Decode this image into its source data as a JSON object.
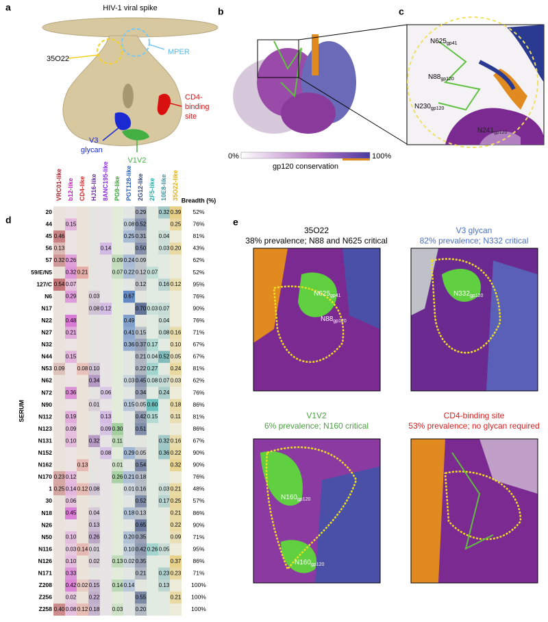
{
  "panels": {
    "a": "a",
    "b": "b",
    "c": "c",
    "d": "d",
    "e": "e"
  },
  "panel_a": {
    "title": "HIV-1 viral spike",
    "epitope_35o22": "35O22",
    "mper": "MPER",
    "cd4_lines": [
      "CD4-",
      "binding",
      "site"
    ],
    "v3_lines": [
      "V3",
      "glycan"
    ],
    "v1v2": "V1V2"
  },
  "panel_b": {
    "scale_min": "0%",
    "scale_max": "100%",
    "scale_label": "gp120 conservation"
  },
  "panel_c": {
    "labels": [
      {
        "text": "N625",
        "sub": "gp41"
      },
      {
        "text": "N88",
        "sub": "gp120"
      },
      {
        "text": "N230",
        "sub": "gp120"
      },
      {
        "text": "N241",
        "sub": "gp120"
      }
    ]
  },
  "heatmap": {
    "breadth_header": "Breadth (%)",
    "row_axis": "SERUM",
    "columns": [
      {
        "name": "VRC01-like",
        "color": "#a8252f"
      },
      {
        "name": "b12-like",
        "color": "#c81fc8"
      },
      {
        "name": "CD4-like",
        "color": "#d42a2a"
      },
      {
        "name": "HJ16-like",
        "color": "#6a2d9a"
      },
      {
        "name": "8ANC195-like",
        "color": "#8a2be2"
      },
      {
        "name": "PG9-like",
        "color": "#3aa43a"
      },
      {
        "name": "PGT128-like",
        "color": "#2e63b8"
      },
      {
        "name": "2G12-like",
        "color": "#34497e"
      },
      {
        "name": "2F5-like",
        "color": "#28aaaa"
      },
      {
        "name": "10E8-like",
        "color": "#3a96a0"
      },
      {
        "name": "35O22-like",
        "color": "#e0b020"
      }
    ],
    "rows": [
      {
        "label": "20",
        "cells": [
          null,
          null,
          null,
          null,
          null,
          null,
          null,
          "0.29",
          null,
          "0.32",
          "0.39"
        ],
        "breadth": "52%"
      },
      {
        "label": "44",
        "cells": [
          null,
          "0.15",
          null,
          null,
          null,
          null,
          "0.08",
          "0.52",
          null,
          null,
          "0.25"
        ],
        "breadth": "76%"
      },
      {
        "label": "45",
        "cells": [
          "0.46",
          null,
          null,
          null,
          null,
          null,
          "0.25",
          "0.31",
          null,
          "0.04",
          null
        ],
        "breadth": "81%"
      },
      {
        "label": "56",
        "cells": [
          "0.13",
          null,
          null,
          null,
          "0.14",
          null,
          null,
          "0.50",
          null,
          "0.03",
          "0.20"
        ],
        "breadth": "43%"
      },
      {
        "label": "57",
        "cells": [
          "0.32",
          "0.26",
          null,
          null,
          null,
          "0.09",
          "0.24",
          "0.09",
          null,
          null,
          null
        ],
        "breadth": "62%"
      },
      {
        "label": "59/E/N5",
        "cells": [
          null,
          "0.32",
          "0.21",
          null,
          null,
          "0.07",
          "0.22",
          "0.12",
          "0.07",
          null,
          null
        ],
        "breadth": "52%"
      },
      {
        "label": "127/C",
        "cells": [
          "0.54",
          "0.07",
          null,
          null,
          null,
          null,
          null,
          "0.12",
          null,
          "0.16",
          "0.12"
        ],
        "breadth": "95%"
      },
      {
        "label": "N6",
        "cells": [
          null,
          "0.29",
          null,
          "0.03",
          null,
          null,
          "0.67",
          null,
          null,
          null,
          null
        ],
        "breadth": "76%"
      },
      {
        "label": "N17",
        "cells": [
          null,
          null,
          null,
          "0.08",
          "0.12",
          null,
          null,
          "0.70",
          "0.03",
          "0.07",
          null
        ],
        "breadth": "90%"
      },
      {
        "label": "N22",
        "cells": [
          null,
          "0.48",
          null,
          null,
          null,
          null,
          "0.49",
          null,
          null,
          "0.04",
          null
        ],
        "breadth": "76%"
      },
      {
        "label": "N27",
        "cells": [
          null,
          "0.21",
          null,
          null,
          null,
          null,
          "0.41",
          "0.15",
          null,
          "0.08",
          "0.16"
        ],
        "breadth": "71%"
      },
      {
        "label": "N32",
        "cells": [
          null,
          null,
          null,
          null,
          null,
          null,
          "0.36",
          "0.37",
          "0.17",
          null,
          "0.10"
        ],
        "breadth": "67%"
      },
      {
        "label": "N44",
        "cells": [
          null,
          "0.15",
          null,
          null,
          null,
          null,
          null,
          "0.21",
          "0.04",
          "0.52",
          "0.05"
        ],
        "breadth": "67%"
      },
      {
        "label": "N53",
        "cells": [
          "0.09",
          null,
          "0.08",
          "0.10",
          null,
          null,
          null,
          "0.22",
          "0.27",
          null,
          "0.24"
        ],
        "breadth": "81%"
      },
      {
        "label": "N62",
        "cells": [
          null,
          null,
          null,
          "0.34",
          null,
          null,
          "0.03",
          "0.45",
          "0.08",
          "0.07",
          "0.03"
        ],
        "breadth": "62%"
      },
      {
        "label": "N72",
        "cells": [
          null,
          "0.36",
          null,
          null,
          "0.06",
          null,
          null,
          "0.34",
          null,
          "0.24",
          null
        ],
        "breadth": "76%"
      },
      {
        "label": "N90",
        "cells": [
          null,
          null,
          null,
          "0.01",
          null,
          null,
          "0.15",
          "0.05",
          "0.60",
          null,
          "0.18"
        ],
        "breadth": "86%"
      },
      {
        "label": "N112",
        "cells": [
          null,
          "0.19",
          null,
          null,
          "0.13",
          null,
          null,
          "0.42",
          "0.15",
          null,
          "0.11"
        ],
        "breadth": "81%"
      },
      {
        "label": "N123",
        "cells": [
          null,
          "0.09",
          null,
          null,
          "0.09",
          "0.30",
          null,
          "0.51",
          null,
          null,
          null
        ],
        "breadth": "86%"
      },
      {
        "label": "N131",
        "cells": [
          null,
          "0.10",
          null,
          "0.32",
          null,
          "0.11",
          null,
          null,
          null,
          "0.32",
          "0.16"
        ],
        "breadth": "67%"
      },
      {
        "label": "N152",
        "cells": [
          null,
          null,
          null,
          null,
          "0.08",
          null,
          "0.29",
          "0.05",
          null,
          "0.36",
          "0.22"
        ],
        "breadth": "90%"
      },
      {
        "label": "N162",
        "cells": [
          null,
          null,
          "0.13",
          null,
          null,
          "0.01",
          null,
          "0.54",
          null,
          null,
          "0.32"
        ],
        "breadth": "90%"
      },
      {
        "label": "N170",
        "cells": [
          "0.23",
          "0.12",
          null,
          null,
          null,
          "0.26",
          "0.21",
          "0.18",
          null,
          null,
          null
        ],
        "breadth": "76%"
      },
      {
        "label": "1",
        "cells": [
          "0.25",
          "0.14",
          "0.12",
          "0.08",
          null,
          null,
          "0.01",
          "0.16",
          null,
          "0.03",
          "0.21"
        ],
        "breadth": "48%"
      },
      {
        "label": "30",
        "cells": [
          null,
          "0.06",
          null,
          null,
          null,
          null,
          null,
          "0.52",
          null,
          "0.17",
          "0.25"
        ],
        "breadth": "57%"
      },
      {
        "label": "N18",
        "cells": [
          null,
          "0.45",
          null,
          "0.04",
          null,
          null,
          "0.18",
          "0.13",
          null,
          null,
          "0.21"
        ],
        "breadth": "86%"
      },
      {
        "label": "N26",
        "cells": [
          null,
          null,
          null,
          "0.13",
          null,
          null,
          null,
          "0.65",
          null,
          null,
          "0.22"
        ],
        "breadth": "90%"
      },
      {
        "label": "N50",
        "cells": [
          null,
          "0.10",
          null,
          "0.26",
          null,
          null,
          "0.20",
          "0.35",
          null,
          null,
          "0.09"
        ],
        "breadth": "71%"
      },
      {
        "label": "N116",
        "cells": [
          null,
          "0.03",
          "0.14",
          "0.01",
          null,
          null,
          "0.10",
          "0.42",
          "0.26",
          "0.05",
          null
        ],
        "breadth": "95%"
      },
      {
        "label": "N126",
        "cells": [
          null,
          "0.10",
          null,
          "0.02",
          null,
          "0.13",
          "0.02",
          "0.35",
          null,
          null,
          "0.37"
        ],
        "breadth": "86%"
      },
      {
        "label": "N171",
        "cells": [
          null,
          "0.33",
          null,
          null,
          null,
          null,
          null,
          "0.21",
          null,
          "0.23",
          "0.23"
        ],
        "breadth": "71%"
      },
      {
        "label": "Z208",
        "cells": [
          null,
          "0.42",
          "0.02",
          "0.15",
          null,
          "0.14",
          "0.14",
          null,
          null,
          "0.13",
          null
        ],
        "breadth": "100%"
      },
      {
        "label": "Z256",
        "cells": [
          null,
          "0.02",
          null,
          "0.22",
          null,
          null,
          null,
          "0.55",
          null,
          null,
          "0.21"
        ],
        "breadth": "100%"
      },
      {
        "label": "Z258",
        "cells": [
          "0.40",
          "0.08",
          "0.12",
          "0.18",
          null,
          "0.03",
          null,
          "0.20",
          null,
          null,
          null
        ],
        "breadth": "100%"
      }
    ]
  },
  "panel_e": [
    {
      "title": "35O22",
      "subtitle": "38% prevalence; N88 and N625 critical",
      "color": "#000000",
      "labels": [
        {
          "text": "N625",
          "sub": "gp41"
        },
        {
          "text": "N88",
          "sub": "gp120"
        }
      ]
    },
    {
      "title": "V3 glycan",
      "subtitle": "82% prevalence; N332 critical",
      "color": "#4a6fc0",
      "labels": [
        {
          "text": "N332",
          "sub": "gp120"
        }
      ]
    },
    {
      "title": "V1V2",
      "subtitle": "6% prevalence; N160 critical",
      "color": "#4aa040",
      "labels": [
        {
          "text": "N160",
          "sub": "gp120"
        },
        {
          "text": "N160",
          "sub": "gp120"
        }
      ]
    },
    {
      "title": "CD4-binding site",
      "subtitle": "53% prevalence; no glycan required",
      "color": "#d42020",
      "labels": []
    }
  ]
}
